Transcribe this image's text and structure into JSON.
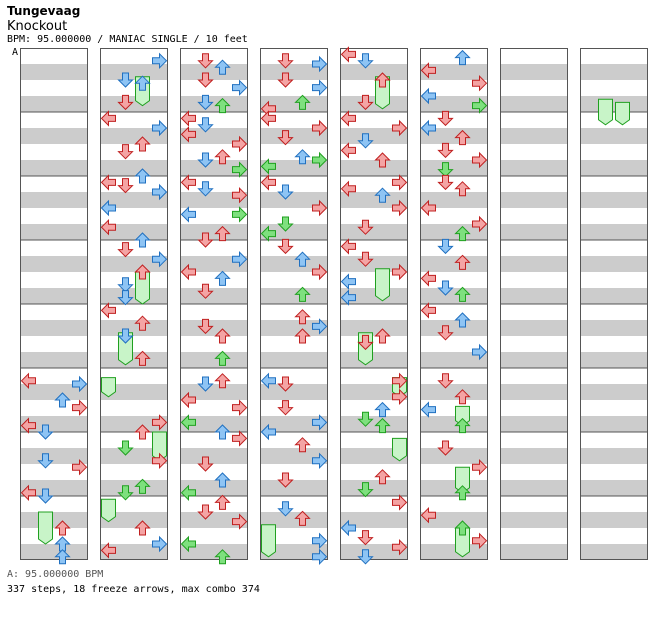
{
  "header": {
    "artist": "Tungevaag",
    "title": "Knockout",
    "info": "BPM: 95.000000 / MANIAC SINGLE / 10 feet",
    "marker": "A"
  },
  "footer": {
    "bpm": "A: 95.000000 BPM",
    "stats": "337 steps, 18 freeze arrows, max combo 374"
  },
  "colors": {
    "red": "#f4a4a4",
    "blue": "#8ec4f4",
    "green": "#7ee07e",
    "band": "#cccccc",
    "border": "#555555"
  },
  "chart_data": {
    "type": "step-chart",
    "columns": 8,
    "measures_per_column": 8,
    "lanes": [
      "left",
      "down",
      "up",
      "right"
    ],
    "notes": [
      {
        "c": 0,
        "y": 5.2,
        "l": 0,
        "k": "r"
      },
      {
        "c": 0,
        "y": 5.25,
        "l": 3,
        "k": "b"
      },
      {
        "c": 0,
        "y": 5.5,
        "l": 2,
        "k": "b"
      },
      {
        "c": 0,
        "y": 5.62,
        "l": 3,
        "k": "r"
      },
      {
        "c": 0,
        "y": 5.9,
        "l": 0,
        "k": "r"
      },
      {
        "c": 0,
        "y": 6.0,
        "l": 1,
        "k": "b"
      },
      {
        "c": 0,
        "y": 6.45,
        "l": 1,
        "k": "b"
      },
      {
        "c": 0,
        "y": 6.55,
        "l": 3,
        "k": "r"
      },
      {
        "c": 0,
        "y": 6.95,
        "l": 0,
        "k": "r"
      },
      {
        "c": 0,
        "y": 7.0,
        "l": 1,
        "k": "b"
      },
      {
        "c": 0,
        "y": 7.5,
        "l": 2,
        "k": "r"
      },
      {
        "c": 0,
        "y": 7.75,
        "l": 2,
        "k": "b"
      },
      {
        "c": 0,
        "y": 7.95,
        "l": 2,
        "k": "b"
      },
      {
        "c": 1,
        "y": 0.2,
        "l": 3,
        "k": "b"
      },
      {
        "c": 1,
        "y": 0.5,
        "l": 1,
        "k": "b"
      },
      {
        "c": 1,
        "y": 0.55,
        "l": 2,
        "k": "b"
      },
      {
        "c": 1,
        "y": 0.85,
        "l": 1,
        "k": "r"
      },
      {
        "c": 1,
        "y": 1.1,
        "l": 0,
        "k": "r"
      },
      {
        "c": 1,
        "y": 1.25,
        "l": 3,
        "k": "b"
      },
      {
        "c": 1,
        "y": 1.5,
        "l": 2,
        "k": "r"
      },
      {
        "c": 1,
        "y": 1.62,
        "l": 1,
        "k": "r"
      },
      {
        "c": 1,
        "y": 2.0,
        "l": 2,
        "k": "b"
      },
      {
        "c": 1,
        "y": 2.1,
        "l": 0,
        "k": "r"
      },
      {
        "c": 1,
        "y": 2.15,
        "l": 1,
        "k": "r"
      },
      {
        "c": 1,
        "y": 2.25,
        "l": 3,
        "k": "b"
      },
      {
        "c": 1,
        "y": 2.5,
        "l": 0,
        "k": "b"
      },
      {
        "c": 1,
        "y": 2.8,
        "l": 0,
        "k": "r"
      },
      {
        "c": 1,
        "y": 3.0,
        "l": 2,
        "k": "b"
      },
      {
        "c": 1,
        "y": 3.15,
        "l": 1,
        "k": "r"
      },
      {
        "c": 1,
        "y": 3.3,
        "l": 3,
        "k": "b"
      },
      {
        "c": 1,
        "y": 3.5,
        "l": 2,
        "k": "r"
      },
      {
        "c": 1,
        "y": 3.7,
        "l": 1,
        "k": "b"
      },
      {
        "c": 1,
        "y": 3.9,
        "l": 1,
        "k": "b"
      },
      {
        "c": 1,
        "y": 4.1,
        "l": 0,
        "k": "r"
      },
      {
        "c": 1,
        "y": 4.3,
        "l": 2,
        "k": "r"
      },
      {
        "c": 1,
        "y": 4.5,
        "l": 1,
        "k": "b"
      },
      {
        "c": 1,
        "y": 4.85,
        "l": 2,
        "k": "r"
      },
      {
        "c": 1,
        "y": 5.85,
        "l": 3,
        "k": "r"
      },
      {
        "c": 1,
        "y": 6.0,
        "l": 2,
        "k": "r"
      },
      {
        "c": 1,
        "y": 6.25,
        "l": 1,
        "k": "g"
      },
      {
        "c": 1,
        "y": 6.45,
        "l": 3,
        "k": "r"
      },
      {
        "c": 1,
        "y": 6.85,
        "l": 2,
        "k": "g"
      },
      {
        "c": 1,
        "y": 6.95,
        "l": 1,
        "k": "g"
      },
      {
        "c": 1,
        "y": 7.5,
        "l": 2,
        "k": "r"
      },
      {
        "c": 1,
        "y": 7.75,
        "l": 3,
        "k": "b"
      },
      {
        "c": 1,
        "y": 7.85,
        "l": 0,
        "k": "r"
      },
      {
        "c": 2,
        "y": 0.2,
        "l": 1,
        "k": "r"
      },
      {
        "c": 2,
        "y": 0.3,
        "l": 2,
        "k": "b"
      },
      {
        "c": 2,
        "y": 0.5,
        "l": 1,
        "k": "r"
      },
      {
        "c": 2,
        "y": 0.62,
        "l": 3,
        "k": "b"
      },
      {
        "c": 2,
        "y": 0.85,
        "l": 1,
        "k": "b"
      },
      {
        "c": 2,
        "y": 0.9,
        "l": 2,
        "k": "g"
      },
      {
        "c": 2,
        "y": 1.1,
        "l": 0,
        "k": "r"
      },
      {
        "c": 2,
        "y": 1.2,
        "l": 1,
        "k": "b"
      },
      {
        "c": 2,
        "y": 1.35,
        "l": 0,
        "k": "r"
      },
      {
        "c": 2,
        "y": 1.5,
        "l": 3,
        "k": "r"
      },
      {
        "c": 2,
        "y": 1.7,
        "l": 2,
        "k": "r"
      },
      {
        "c": 2,
        "y": 1.75,
        "l": 1,
        "k": "b"
      },
      {
        "c": 2,
        "y": 1.9,
        "l": 3,
        "k": "g"
      },
      {
        "c": 2,
        "y": 2.1,
        "l": 0,
        "k": "r"
      },
      {
        "c": 2,
        "y": 2.2,
        "l": 1,
        "k": "b"
      },
      {
        "c": 2,
        "y": 2.3,
        "l": 3,
        "k": "r"
      },
      {
        "c": 2,
        "y": 2.6,
        "l": 0,
        "k": "b"
      },
      {
        "c": 2,
        "y": 2.6,
        "l": 3,
        "k": "g"
      },
      {
        "c": 2,
        "y": 2.9,
        "l": 2,
        "k": "r"
      },
      {
        "c": 2,
        "y": 3.0,
        "l": 1,
        "k": "r"
      },
      {
        "c": 2,
        "y": 3.3,
        "l": 3,
        "k": "b"
      },
      {
        "c": 2,
        "y": 3.5,
        "l": 0,
        "k": "r"
      },
      {
        "c": 2,
        "y": 3.6,
        "l": 2,
        "k": "b"
      },
      {
        "c": 2,
        "y": 3.8,
        "l": 1,
        "k": "r"
      },
      {
        "c": 2,
        "y": 4.35,
        "l": 1,
        "k": "r"
      },
      {
        "c": 2,
        "y": 4.5,
        "l": 2,
        "k": "r"
      },
      {
        "c": 2,
        "y": 4.85,
        "l": 2,
        "k": "g"
      },
      {
        "c": 2,
        "y": 5.2,
        "l": 2,
        "k": "r"
      },
      {
        "c": 2,
        "y": 5.25,
        "l": 1,
        "k": "b"
      },
      {
        "c": 2,
        "y": 5.5,
        "l": 0,
        "k": "r"
      },
      {
        "c": 2,
        "y": 5.62,
        "l": 3,
        "k": "r"
      },
      {
        "c": 2,
        "y": 5.85,
        "l": 0,
        "k": "g"
      },
      {
        "c": 2,
        "y": 6.0,
        "l": 2,
        "k": "b"
      },
      {
        "c": 2,
        "y": 6.1,
        "l": 3,
        "k": "r"
      },
      {
        "c": 2,
        "y": 6.5,
        "l": 1,
        "k": "r"
      },
      {
        "c": 2,
        "y": 6.75,
        "l": 2,
        "k": "b"
      },
      {
        "c": 2,
        "y": 6.95,
        "l": 0,
        "k": "g"
      },
      {
        "c": 2,
        "y": 7.1,
        "l": 2,
        "k": "r"
      },
      {
        "c": 2,
        "y": 7.25,
        "l": 1,
        "k": "r"
      },
      {
        "c": 2,
        "y": 7.4,
        "l": 3,
        "k": "r"
      },
      {
        "c": 2,
        "y": 7.75,
        "l": 0,
        "k": "g"
      },
      {
        "c": 2,
        "y": 7.95,
        "l": 2,
        "k": "g"
      },
      {
        "c": 3,
        "y": 0.2,
        "l": 1,
        "k": "r"
      },
      {
        "c": 3,
        "y": 0.25,
        "l": 3,
        "k": "b"
      },
      {
        "c": 3,
        "y": 0.5,
        "l": 1,
        "k": "r"
      },
      {
        "c": 3,
        "y": 0.62,
        "l": 3,
        "k": "b"
      },
      {
        "c": 3,
        "y": 0.85,
        "l": 2,
        "k": "g"
      },
      {
        "c": 3,
        "y": 0.95,
        "l": 0,
        "k": "r"
      },
      {
        "c": 3,
        "y": 1.1,
        "l": 0,
        "k": "r"
      },
      {
        "c": 3,
        "y": 1.25,
        "l": 3,
        "k": "r"
      },
      {
        "c": 3,
        "y": 1.4,
        "l": 1,
        "k": "r"
      },
      {
        "c": 3,
        "y": 1.7,
        "l": 2,
        "k": "b"
      },
      {
        "c": 3,
        "y": 1.75,
        "l": 3,
        "k": "g"
      },
      {
        "c": 3,
        "y": 1.85,
        "l": 0,
        "k": "g"
      },
      {
        "c": 3,
        "y": 2.1,
        "l": 0,
        "k": "r"
      },
      {
        "c": 3,
        "y": 2.25,
        "l": 1,
        "k": "b"
      },
      {
        "c": 3,
        "y": 2.5,
        "l": 3,
        "k": "r"
      },
      {
        "c": 3,
        "y": 2.75,
        "l": 1,
        "k": "g"
      },
      {
        "c": 3,
        "y": 2.9,
        "l": 0,
        "k": "g"
      },
      {
        "c": 3,
        "y": 3.1,
        "l": 1,
        "k": "r"
      },
      {
        "c": 3,
        "y": 3.3,
        "l": 2,
        "k": "b"
      },
      {
        "c": 3,
        "y": 3.5,
        "l": 3,
        "k": "r"
      },
      {
        "c": 3,
        "y": 3.85,
        "l": 2,
        "k": "g"
      },
      {
        "c": 3,
        "y": 4.2,
        "l": 2,
        "k": "r"
      },
      {
        "c": 3,
        "y": 4.35,
        "l": 3,
        "k": "b"
      },
      {
        "c": 3,
        "y": 4.5,
        "l": 2,
        "k": "r"
      },
      {
        "c": 3,
        "y": 5.2,
        "l": 0,
        "k": "b"
      },
      {
        "c": 3,
        "y": 5.25,
        "l": 1,
        "k": "r"
      },
      {
        "c": 3,
        "y": 5.62,
        "l": 1,
        "k": "r"
      },
      {
        "c": 3,
        "y": 5.85,
        "l": 3,
        "k": "b"
      },
      {
        "c": 3,
        "y": 6.0,
        "l": 0,
        "k": "b"
      },
      {
        "c": 3,
        "y": 6.2,
        "l": 2,
        "k": "r"
      },
      {
        "c": 3,
        "y": 6.45,
        "l": 3,
        "k": "b"
      },
      {
        "c": 3,
        "y": 6.75,
        "l": 1,
        "k": "r"
      },
      {
        "c": 3,
        "y": 7.2,
        "l": 1,
        "k": "b"
      },
      {
        "c": 3,
        "y": 7.35,
        "l": 2,
        "k": "r"
      },
      {
        "c": 3,
        "y": 7.7,
        "l": 3,
        "k": "b"
      },
      {
        "c": 3,
        "y": 7.95,
        "l": 3,
        "k": "b"
      },
      {
        "c": 4,
        "y": 0.1,
        "l": 0,
        "k": "r"
      },
      {
        "c": 4,
        "y": 0.2,
        "l": 1,
        "k": "b"
      },
      {
        "c": 4,
        "y": 0.5,
        "l": 2,
        "k": "r"
      },
      {
        "c": 4,
        "y": 0.85,
        "l": 1,
        "k": "r"
      },
      {
        "c": 4,
        "y": 1.1,
        "l": 0,
        "k": "r"
      },
      {
        "c": 4,
        "y": 1.25,
        "l": 3,
        "k": "r"
      },
      {
        "c": 4,
        "y": 1.45,
        "l": 1,
        "k": "b"
      },
      {
        "c": 4,
        "y": 1.6,
        "l": 0,
        "k": "r"
      },
      {
        "c": 4,
        "y": 1.75,
        "l": 2,
        "k": "r"
      },
      {
        "c": 4,
        "y": 2.1,
        "l": 3,
        "k": "r"
      },
      {
        "c": 4,
        "y": 2.2,
        "l": 0,
        "k": "r"
      },
      {
        "c": 4,
        "y": 2.3,
        "l": 2,
        "k": "b"
      },
      {
        "c": 4,
        "y": 2.5,
        "l": 3,
        "k": "r"
      },
      {
        "c": 4,
        "y": 2.8,
        "l": 1,
        "k": "r"
      },
      {
        "c": 4,
        "y": 3.1,
        "l": 0,
        "k": "r"
      },
      {
        "c": 4,
        "y": 3.3,
        "l": 1,
        "k": "r"
      },
      {
        "c": 4,
        "y": 3.5,
        "l": 3,
        "k": "r"
      },
      {
        "c": 4,
        "y": 3.65,
        "l": 0,
        "k": "b"
      },
      {
        "c": 4,
        "y": 3.9,
        "l": 0,
        "k": "b"
      },
      {
        "c": 4,
        "y": 4.5,
        "l": 2,
        "k": "r"
      },
      {
        "c": 4,
        "y": 4.6,
        "l": 1,
        "k": "r"
      },
      {
        "c": 4,
        "y": 5.2,
        "l": 3,
        "k": "r"
      },
      {
        "c": 4,
        "y": 5.45,
        "l": 3,
        "k": "r"
      },
      {
        "c": 4,
        "y": 5.65,
        "l": 2,
        "k": "b"
      },
      {
        "c": 4,
        "y": 5.8,
        "l": 1,
        "k": "g"
      },
      {
        "c": 4,
        "y": 5.9,
        "l": 2,
        "k": "g"
      },
      {
        "c": 4,
        "y": 6.7,
        "l": 2,
        "k": "r"
      },
      {
        "c": 4,
        "y": 6.9,
        "l": 1,
        "k": "g"
      },
      {
        "c": 4,
        "y": 7.1,
        "l": 3,
        "k": "r"
      },
      {
        "c": 4,
        "y": 7.5,
        "l": 0,
        "k": "b"
      },
      {
        "c": 4,
        "y": 7.65,
        "l": 1,
        "k": "r"
      },
      {
        "c": 4,
        "y": 7.8,
        "l": 3,
        "k": "r"
      },
      {
        "c": 4,
        "y": 7.95,
        "l": 1,
        "k": "b"
      },
      {
        "c": 5,
        "y": 0.15,
        "l": 2,
        "k": "b"
      },
      {
        "c": 5,
        "y": 0.35,
        "l": 0,
        "k": "r"
      },
      {
        "c": 5,
        "y": 0.55,
        "l": 3,
        "k": "r"
      },
      {
        "c": 5,
        "y": 0.75,
        "l": 0,
        "k": "b"
      },
      {
        "c": 5,
        "y": 0.9,
        "l": 3,
        "k": "g"
      },
      {
        "c": 5,
        "y": 1.1,
        "l": 1,
        "k": "r"
      },
      {
        "c": 5,
        "y": 1.25,
        "l": 0,
        "k": "b"
      },
      {
        "c": 5,
        "y": 1.4,
        "l": 2,
        "k": "r"
      },
      {
        "c": 5,
        "y": 1.6,
        "l": 1,
        "k": "r"
      },
      {
        "c": 5,
        "y": 1.75,
        "l": 3,
        "k": "r"
      },
      {
        "c": 5,
        "y": 1.9,
        "l": 1,
        "k": "g"
      },
      {
        "c": 5,
        "y": 2.1,
        "l": 1,
        "k": "r"
      },
      {
        "c": 5,
        "y": 2.2,
        "l": 2,
        "k": "r"
      },
      {
        "c": 5,
        "y": 2.5,
        "l": 0,
        "k": "r"
      },
      {
        "c": 5,
        "y": 2.75,
        "l": 3,
        "k": "r"
      },
      {
        "c": 5,
        "y": 2.9,
        "l": 2,
        "k": "g"
      },
      {
        "c": 5,
        "y": 3.1,
        "l": 1,
        "k": "b"
      },
      {
        "c": 5,
        "y": 3.35,
        "l": 2,
        "k": "r"
      },
      {
        "c": 5,
        "y": 3.6,
        "l": 0,
        "k": "r"
      },
      {
        "c": 5,
        "y": 3.75,
        "l": 1,
        "k": "b"
      },
      {
        "c": 5,
        "y": 3.85,
        "l": 2,
        "k": "g"
      },
      {
        "c": 5,
        "y": 4.1,
        "l": 0,
        "k": "r"
      },
      {
        "c": 5,
        "y": 4.25,
        "l": 2,
        "k": "b"
      },
      {
        "c": 5,
        "y": 4.45,
        "l": 1,
        "k": "r"
      },
      {
        "c": 5,
        "y": 4.75,
        "l": 3,
        "k": "b"
      },
      {
        "c": 5,
        "y": 5.2,
        "l": 1,
        "k": "r"
      },
      {
        "c": 5,
        "y": 5.45,
        "l": 2,
        "k": "r"
      },
      {
        "c": 5,
        "y": 5.65,
        "l": 0,
        "k": "b"
      },
      {
        "c": 5,
        "y": 5.9,
        "l": 2,
        "k": "g"
      },
      {
        "c": 5,
        "y": 6.25,
        "l": 1,
        "k": "r"
      },
      {
        "c": 5,
        "y": 6.55,
        "l": 3,
        "k": "r"
      },
      {
        "c": 5,
        "y": 6.95,
        "l": 2,
        "k": "g"
      },
      {
        "c": 5,
        "y": 7.3,
        "l": 0,
        "k": "r"
      },
      {
        "c": 5,
        "y": 7.5,
        "l": 2,
        "k": "g"
      },
      {
        "c": 5,
        "y": 7.7,
        "l": 3,
        "k": "r"
      }
    ],
    "freezes": [
      {
        "c": 0,
        "y": 7.25,
        "y2": 7.75,
        "l": 1,
        "k": "g"
      },
      {
        "c": 1,
        "y": 0.45,
        "y2": 0.9,
        "l": 2,
        "k": "g"
      },
      {
        "c": 1,
        "y": 3.5,
        "y2": 4.0,
        "l": 2,
        "k": "g"
      },
      {
        "c": 1,
        "y": 4.45,
        "y2": 4.95,
        "l": 1,
        "k": "g"
      },
      {
        "c": 1,
        "y": 5.15,
        "y2": 5.45,
        "l": 0,
        "k": "g"
      },
      {
        "c": 1,
        "y": 6.0,
        "y2": 6.45,
        "l": 3,
        "k": "g"
      },
      {
        "c": 1,
        "y": 7.05,
        "y2": 7.4,
        "l": 0,
        "k": "g"
      },
      {
        "c": 3,
        "y": 7.45,
        "y2": 7.95,
        "l": 0,
        "k": "g"
      },
      {
        "c": 4,
        "y": 0.45,
        "y2": 0.95,
        "l": 2,
        "k": "g"
      },
      {
        "c": 4,
        "y": 3.45,
        "y2": 3.95,
        "l": 2,
        "k": "g"
      },
      {
        "c": 4,
        "y": 4.45,
        "y2": 4.95,
        "l": 1,
        "k": "g"
      },
      {
        "c": 4,
        "y": 5.15,
        "y2": 5.45,
        "l": 3,
        "k": "g"
      },
      {
        "c": 4,
        "y": 6.1,
        "y2": 6.45,
        "l": 3,
        "k": "g"
      },
      {
        "c": 5,
        "y": 5.6,
        "y2": 5.9,
        "l": 2,
        "k": "g"
      },
      {
        "c": 5,
        "y": 6.55,
        "y2": 6.95,
        "l": 2,
        "k": "g"
      },
      {
        "c": 5,
        "y": 7.5,
        "y2": 7.95,
        "l": 2,
        "k": "g"
      },
      {
        "c": 7,
        "y": 0.8,
        "y2": 1.2,
        "l": 1,
        "k": "g"
      },
      {
        "c": 7,
        "y": 0.85,
        "y2": 1.2,
        "l": 2,
        "k": "g"
      }
    ]
  }
}
